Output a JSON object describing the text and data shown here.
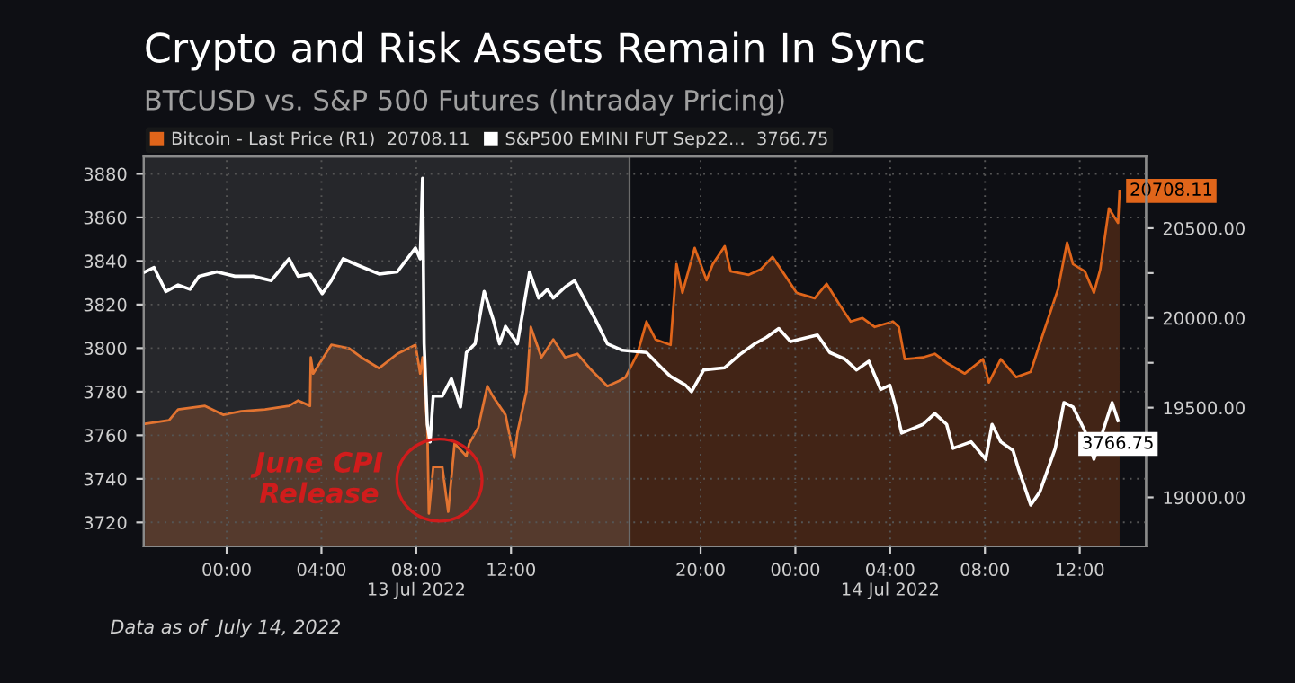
{
  "chart_data": {
    "type": "line",
    "title": "Crypto and Risk Assets Remain In Sync",
    "subtitle": "BTCUSD vs. S&P 500 Futures (Intraday Pricing)",
    "xlim": [
      "2022-07-12T20:30",
      "2022-07-14T14:48"
    ],
    "xticks": [
      {
        "value": "2022-07-13T00:00",
        "label": "00:00"
      },
      {
        "value": "2022-07-13T04:00",
        "label": "04:00"
      },
      {
        "value": "2022-07-13T08:00",
        "label": "08:00\n13 Jul 2022"
      },
      {
        "value": "2022-07-13T12:00",
        "label": "12:00"
      },
      {
        "value": "2022-07-13T20:00",
        "label": "20:00"
      },
      {
        "value": "2022-07-14T00:00",
        "label": "00:00"
      },
      {
        "value": "2022-07-14T04:00",
        "label": "04:00\n14 Jul 2022"
      },
      {
        "value": "2022-07-14T08:00",
        "label": "08:00"
      },
      {
        "value": "2022-07-14T12:00",
        "label": "12:00"
      }
    ],
    "ylim": [
      3709,
      3888
    ],
    "yticks": [
      3720,
      3740,
      3760,
      3780,
      3800,
      3820,
      3840,
      3860,
      3880
    ],
    "y2lim": [
      18727,
      20900
    ],
    "y2ticks": [
      {
        "value": 19000,
        "label": "19000.00"
      },
      {
        "value": 19250,
        "label": null
      },
      {
        "value": 19500,
        "label": "19500.00"
      },
      {
        "value": 19750,
        "label": null
      },
      {
        "value": 20000,
        "label": "20000.00"
      },
      {
        "value": 20250,
        "label": null
      },
      {
        "value": 20500,
        "label": "20500.00"
      },
      {
        "value": 20750,
        "label": null
      }
    ],
    "grid": true,
    "legend": "top left",
    "bands": [
      {
        "axis": "x",
        "from": "2022-07-12T20:30",
        "to": "2022-07-13T17:00",
        "color": "#ffffff"
      }
    ],
    "ref_lines": [
      {
        "axis": "x",
        "value": "2022-07-13T17:00",
        "color": "#6a6a6a"
      }
    ],
    "series": [
      {
        "name": "Bitcoin - Last Price (R1)  20708.11",
        "type": "area",
        "axis": "y2",
        "color": "#e0651a",
        "x": [
          "2022-07-12T20:33",
          "2022-07-12T21:34",
          "2022-07-12T21:57",
          "2022-07-12T23:05",
          "2022-07-12T23:51",
          "2022-07-13T00:37",
          "2022-07-13T01:37",
          "2022-07-13T02:38",
          "2022-07-13T03:01",
          "2022-07-13T03:31",
          "2022-07-13T03:33",
          "2022-07-13T03:39",
          "2022-07-13T04:25",
          "2022-07-13T05:10",
          "2022-07-13T05:41",
          "2022-07-13T06:26",
          "2022-07-13T07:12",
          "2022-07-13T07:58",
          "2022-07-13T08:10",
          "2022-07-13T08:16",
          "2022-07-13T08:28",
          "2022-07-13T08:32",
          "2022-07-13T08:43",
          "2022-07-13T09:06",
          "2022-07-13T09:21",
          "2022-07-13T09:37",
          "2022-07-13T10:07",
          "2022-07-13T10:14",
          "2022-07-13T10:37",
          "2022-07-13T11:00",
          "2022-07-13T11:15",
          "2022-07-13T11:46",
          "2022-07-13T12:08",
          "2022-07-13T12:16",
          "2022-07-13T12:39",
          "2022-07-13T12:50",
          "2022-07-13T13:17",
          "2022-07-13T13:47",
          "2022-07-13T14:17",
          "2022-07-13T14:48",
          "2022-07-13T15:19",
          "2022-07-13T16:04",
          "2022-07-13T16:34",
          "2022-07-13T16:50",
          "2022-07-13T17:20",
          "2022-07-13T17:43",
          "2022-07-13T18:06",
          "2022-07-13T18:44",
          "2022-07-13T18:59",
          "2022-07-13T19:14",
          "2022-07-13T19:45",
          "2022-07-13T20:15",
          "2022-07-13T20:31",
          "2022-07-13T21:01",
          "2022-07-13T21:16",
          "2022-07-13T22:02",
          "2022-07-13T22:32",
          "2022-07-13T23:02",
          "2022-07-13T23:33",
          "2022-07-14T00:03",
          "2022-07-14T00:49",
          "2022-07-14T01:19",
          "2022-07-14T01:50",
          "2022-07-14T02:20",
          "2022-07-14T02:50",
          "2022-07-14T03:21",
          "2022-07-14T04:07",
          "2022-07-14T04:22",
          "2022-07-14T04:37",
          "2022-07-14T05:23",
          "2022-07-14T05:53",
          "2022-07-14T06:23",
          "2022-07-14T07:09",
          "2022-07-14T07:55",
          "2022-07-14T08:10",
          "2022-07-14T08:40",
          "2022-07-14T09:19",
          "2022-07-14T09:56",
          "2022-07-14T10:27",
          "2022-07-14T11:05",
          "2022-07-14T11:28",
          "2022-07-14T11:43",
          "2022-07-14T12:13",
          "2022-07-14T12:36",
          "2022-07-14T12:52",
          "2022-07-14T13:14",
          "2022-07-14T13:37",
          "2022-07-14T13:41"
        ],
        "values": [
          19410,
          19430,
          19490,
          19510,
          19460,
          19480,
          19490,
          19510,
          19540,
          19510,
          19780,
          19690,
          19850,
          19830,
          19780,
          19720,
          19800,
          19850,
          19690,
          19780,
          19390,
          18910,
          19170,
          19170,
          18920,
          19300,
          19230,
          19300,
          19390,
          19620,
          19560,
          19460,
          19220,
          19360,
          19590,
          19950,
          19780,
          19880,
          19780,
          19800,
          19720,
          19620,
          19650,
          19670,
          19800,
          19980,
          19880,
          19850,
          20300,
          20140,
          20390,
          20210,
          20300,
          20400,
          20260,
          20240,
          20270,
          20340,
          20240,
          20140,
          20110,
          20190,
          20080,
          19980,
          20000,
          19950,
          19980,
          19950,
          19770,
          19780,
          19800,
          19750,
          19690,
          19770,
          19640,
          19770,
          19670,
          19700,
          19910,
          20160,
          20420,
          20300,
          20260,
          20140,
          20270,
          20610,
          20530,
          20708.11
        ],
        "value_labels": [
          null,
          null,
          null,
          null,
          null,
          null,
          null,
          null,
          null,
          null,
          null,
          null,
          null,
          null,
          null,
          null,
          null,
          null,
          null,
          null,
          null,
          null,
          null,
          null,
          null,
          null,
          null,
          null,
          null,
          null,
          null,
          null,
          null,
          null,
          null,
          null,
          null,
          null,
          null,
          null,
          null,
          null,
          null,
          null,
          null,
          null,
          null,
          null,
          null,
          null,
          null,
          null,
          null,
          null,
          null,
          null,
          null,
          null,
          null,
          null,
          null,
          null,
          null,
          null,
          null,
          null,
          null,
          null,
          null,
          null,
          null,
          null,
          null,
          null,
          null,
          null,
          null,
          null,
          null,
          null,
          null,
          null,
          null,
          null,
          null,
          null,
          null,
          "20708.11"
        ]
      },
      {
        "name": "S&P500 EMINI FUT Sep22...  3766.75",
        "color": "#ffffff",
        "x": [
          "2022-07-12T20:33",
          "2022-07-12T20:56",
          "2022-07-12T21:26",
          "2022-07-12T21:57",
          "2022-07-12T22:27",
          "2022-07-12T22:50",
          "2022-07-12T23:35",
          "2022-07-13T00:21",
          "2022-07-13T01:07",
          "2022-07-13T01:53",
          "2022-07-13T02:38",
          "2022-07-13T03:01",
          "2022-07-13T03:31",
          "2022-07-13T04:02",
          "2022-07-13T04:25",
          "2022-07-13T04:55",
          "2022-07-13T05:33",
          "2022-07-13T06:26",
          "2022-07-13T07:12",
          "2022-07-13T07:58",
          "2022-07-13T08:10",
          "2022-07-13T08:16",
          "2022-07-13T08:20",
          "2022-07-13T08:28",
          "2022-07-13T08:35",
          "2022-07-13T08:43",
          "2022-07-13T09:06",
          "2022-07-13T09:29",
          "2022-07-13T09:52",
          "2022-07-13T10:07",
          "2022-07-13T10:29",
          "2022-07-13T10:52",
          "2022-07-13T11:15",
          "2022-07-13T11:31",
          "2022-07-13T11:46",
          "2022-07-13T12:16",
          "2022-07-13T12:47",
          "2022-07-13T13:10",
          "2022-07-13T13:32",
          "2022-07-13T13:47",
          "2022-07-13T14:17",
          "2022-07-13T14:41",
          "2022-07-13T15:04",
          "2022-07-13T15:34",
          "2022-07-13T16:04",
          "2022-07-13T16:42",
          "2022-07-13T17:43",
          "2022-07-13T18:21",
          "2022-07-13T18:44",
          "2022-07-13T19:22",
          "2022-07-13T19:37",
          "2022-07-13T20:08",
          "2022-07-13T21:01",
          "2022-07-13T21:39",
          "2022-07-13T22:17",
          "2022-07-13T22:47",
          "2022-07-13T23:18",
          "2022-07-13T23:48",
          "2022-07-14T00:56",
          "2022-07-14T01:27",
          "2022-07-14T02:05",
          "2022-07-14T02:35",
          "2022-07-14T03:06",
          "2022-07-14T03:36",
          "2022-07-14T03:59",
          "2022-07-14T04:14",
          "2022-07-14T04:29",
          "2022-07-14T05:23",
          "2022-07-14T05:53",
          "2022-07-14T06:23",
          "2022-07-14T06:39",
          "2022-07-14T07:25",
          "2022-07-14T08:02",
          "2022-07-14T08:18",
          "2022-07-14T08:40",
          "2022-07-14T09:11",
          "2022-07-14T09:26",
          "2022-07-14T09:56",
          "2022-07-14T10:19",
          "2022-07-14T10:58",
          "2022-07-14T11:20",
          "2022-07-14T11:43",
          "2022-07-14T12:13",
          "2022-07-14T12:36",
          "2022-07-14T12:59",
          "2022-07-14T13:22",
          "2022-07-14T13:37"
        ],
        "values": [
          3835,
          3837,
          3826,
          3829,
          3827,
          3833,
          3835,
          3833,
          3833,
          3831,
          3841,
          3833,
          3834,
          3825,
          3831,
          3841,
          3838,
          3834,
          3835,
          3846,
          3841,
          3878,
          3802,
          3765,
          3757,
          3778,
          3778,
          3786,
          3773,
          3798,
          3802,
          3826,
          3813,
          3802,
          3810,
          3802,
          3835,
          3823,
          3827,
          3823,
          3828,
          3831,
          3823,
          3813,
          3802,
          3799,
          3798,
          3791,
          3787,
          3783,
          3780,
          3790,
          3791,
          3797,
          3802,
          3805,
          3809,
          3803,
          3806,
          3798,
          3795,
          3790,
          3794,
          3781,
          3783,
          3773,
          3761,
          3765,
          3770,
          3765,
          3754,
          3757,
          3749,
          3765,
          3757,
          3753,
          3744,
          3728,
          3734,
          3754,
          3775,
          3773,
          3762,
          3749,
          3762,
          3775,
          3766.75
        ],
        "value_labels": [
          null,
          null,
          null,
          null,
          null,
          null,
          null,
          null,
          null,
          null,
          null,
          null,
          null,
          null,
          null,
          null,
          null,
          null,
          null,
          null,
          null,
          null,
          null,
          null,
          null,
          null,
          null,
          null,
          null,
          null,
          null,
          null,
          null,
          null,
          null,
          null,
          null,
          null,
          null,
          null,
          null,
          null,
          null,
          null,
          null,
          null,
          null,
          null,
          null,
          null,
          null,
          null,
          null,
          null,
          null,
          null,
          null,
          null,
          null,
          null,
          null,
          null,
          null,
          null,
          null,
          null,
          null,
          null,
          null,
          null,
          null,
          null,
          null,
          null,
          null,
          null,
          null,
          null,
          null,
          null,
          null,
          null,
          null,
          null,
          null,
          null,
          "3766.75"
        ]
      }
    ],
    "annotations": [
      "June CPI\nRelease",
      "Data as of  July 14, 2022"
    ]
  }
}
